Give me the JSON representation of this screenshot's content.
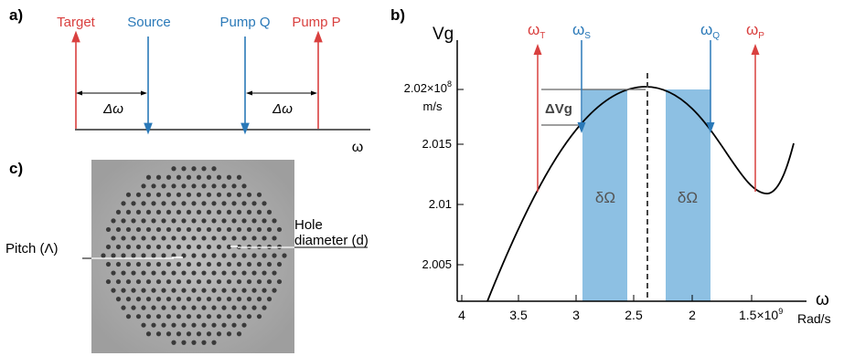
{
  "panel_a": {
    "label": "a)",
    "lines": [
      {
        "name": "Target",
        "color": "#d9403f",
        "dir": "up"
      },
      {
        "name": "Source",
        "color": "#2a79b8",
        "dir": "down"
      },
      {
        "name": "Pump Q",
        "color": "#2a79b8",
        "dir": "down"
      },
      {
        "name": "Pump P",
        "color": "#d9403f",
        "dir": "up"
      }
    ],
    "delta_left": "Δω",
    "delta_right": "Δω",
    "axis_label": "ω"
  },
  "panel_b": {
    "label": "b)",
    "y_title": "Vg",
    "y_ticks": [
      "2.005",
      "2.01",
      "2.015"
    ],
    "y_top_tick": "2.02×10",
    "y_top_exp": "8",
    "y_unit": "m/s",
    "x_ticks": [
      "4",
      "3.5",
      "3",
      "2.5",
      "2"
    ],
    "x_last_tick": "1.5×10",
    "x_last_exp": "9",
    "x_unit": "Rad/s",
    "x_axis_symbol": "ω",
    "delta_vg": "ΔVg",
    "band_label": "δΩ",
    "omegas": [
      {
        "sym": "ω",
        "sub": "T",
        "color": "#d9403f"
      },
      {
        "sym": "ω",
        "sub": "S",
        "color": "#2a79b8"
      },
      {
        "sym": "ω",
        "sub": "Q",
        "color": "#2a79b8"
      },
      {
        "sym": "ω",
        "sub": "P",
        "color": "#d9403f"
      }
    ],
    "band_color": "#8dc0e3"
  },
  "panel_c": {
    "label": "c)",
    "pitch_label": "Pitch (Λ)",
    "hole_label_line1": "Hole",
    "hole_label_line2": "diameter (d)"
  }
}
